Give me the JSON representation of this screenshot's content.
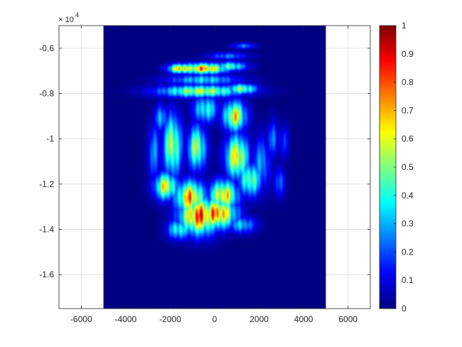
{
  "chart_data": {
    "type": "heatmap",
    "title": "",
    "xlabel": "",
    "ylabel": "",
    "xlim": [
      -7000,
      7000
    ],
    "ylim": [
      -17500,
      -5000
    ],
    "y_exponent_label": "× 10",
    "y_exponent_power": "4",
    "x_ticks": [
      -6000,
      -4000,
      -2000,
      0,
      2000,
      4000,
      6000
    ],
    "x_tick_labels": [
      "-6000",
      "-4000",
      "-2000",
      "0",
      "2000",
      "4000",
      "6000"
    ],
    "y_ticks": [
      -16000,
      -14000,
      -12000,
      -10000,
      -8000,
      -6000
    ],
    "y_tick_labels": [
      "-1.6",
      "-1.4",
      "-1.2",
      "-1",
      "-0.8",
      "-0.6"
    ],
    "grid": true,
    "image_extent": {
      "x": [
        -5000,
        5000
      ],
      "y": [
        -17500,
        -5000
      ]
    },
    "colormap": "jet",
    "clim": [
      0,
      1
    ],
    "colorbar": {
      "ticks": [
        0,
        0.1,
        0.2,
        0.3,
        0.4,
        0.5,
        0.6,
        0.7,
        0.8,
        0.9,
        1
      ],
      "tick_labels": [
        "0",
        "0.1",
        "0.2",
        "0.3",
        "0.4",
        "0.5",
        "0.6",
        "0.7",
        "0.8",
        "0.9",
        "1"
      ]
    },
    "blobs": [
      {
        "x": -700,
        "y": -13400,
        "sx": 600,
        "sy": 550,
        "v": 1.0
      },
      {
        "x": 100,
        "y": -13300,
        "sx": 600,
        "sy": 450,
        "v": 0.95
      },
      {
        "x": -1100,
        "y": -12600,
        "sx": 450,
        "sy": 500,
        "v": 0.9
      },
      {
        "x": 400,
        "y": -12500,
        "sx": 450,
        "sy": 450,
        "v": 0.82
      },
      {
        "x": 1000,
        "y": -10800,
        "sx": 350,
        "sy": 650,
        "v": 0.82
      },
      {
        "x": 900,
        "y": -9000,
        "sx": 350,
        "sy": 450,
        "v": 0.8
      },
      {
        "x": -1900,
        "y": -10300,
        "sx": 280,
        "sy": 900,
        "v": 0.72
      },
      {
        "x": -2200,
        "y": -12100,
        "sx": 350,
        "sy": 400,
        "v": 0.78
      },
      {
        "x": -800,
        "y": -10400,
        "sx": 280,
        "sy": 650,
        "v": 0.68
      },
      {
        "x": 1600,
        "y": -11800,
        "sx": 350,
        "sy": 500,
        "v": 0.62
      },
      {
        "x": -500,
        "y": -6900,
        "sx": 750,
        "sy": 160,
        "v": 0.9
      },
      {
        "x": -1500,
        "y": -6900,
        "sx": 400,
        "sy": 140,
        "v": 0.88
      },
      {
        "x": 700,
        "y": -6800,
        "sx": 500,
        "sy": 140,
        "v": 0.55
      },
      {
        "x": -600,
        "y": -7900,
        "sx": 1300,
        "sy": 180,
        "v": 0.7
      },
      {
        "x": 1200,
        "y": -7800,
        "sx": 500,
        "sy": 160,
        "v": 0.62
      },
      {
        "x": -500,
        "y": -7400,
        "sx": 1100,
        "sy": 170,
        "v": 0.42
      },
      {
        "x": 600,
        "y": -6350,
        "sx": 600,
        "sy": 110,
        "v": 0.3
      },
      {
        "x": 1300,
        "y": -5900,
        "sx": 350,
        "sy": 90,
        "v": 0.3
      },
      {
        "x": 2100,
        "y": -11100,
        "sx": 280,
        "sy": 800,
        "v": 0.35
      },
      {
        "x": 2600,
        "y": -10000,
        "sx": 180,
        "sy": 550,
        "v": 0.3
      },
      {
        "x": 2900,
        "y": -11900,
        "sx": 180,
        "sy": 450,
        "v": 0.28
      },
      {
        "x": -2700,
        "y": -10600,
        "sx": 200,
        "sy": 850,
        "v": 0.33
      },
      {
        "x": -1600,
        "y": -14000,
        "sx": 350,
        "sy": 300,
        "v": 0.52
      },
      {
        "x": 1200,
        "y": -13800,
        "sx": 450,
        "sy": 250,
        "v": 0.4
      },
      {
        "x": 3100,
        "y": -10100,
        "sx": 160,
        "sy": 500,
        "v": 0.22
      },
      {
        "x": -400,
        "y": -8700,
        "sx": 400,
        "sy": 400,
        "v": 0.5
      },
      {
        "x": -2400,
        "y": -9100,
        "sx": 200,
        "sy": 400,
        "v": 0.4
      }
    ]
  }
}
